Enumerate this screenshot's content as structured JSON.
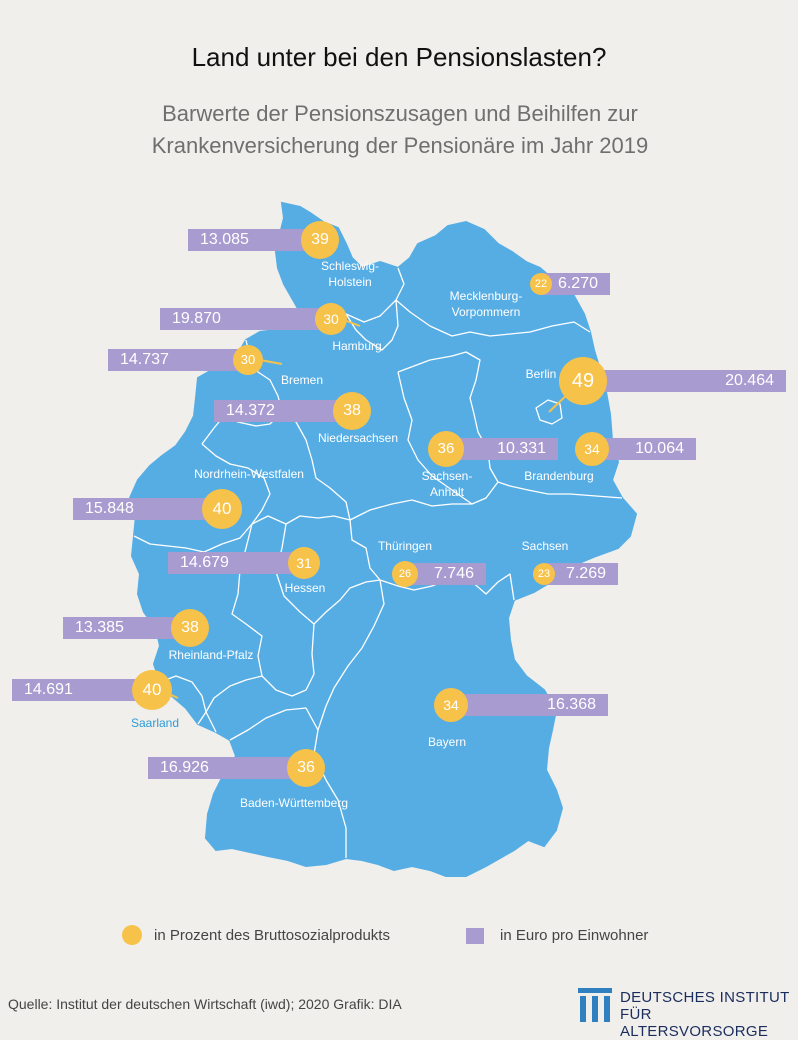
{
  "title": "Land unter bei den Pensionslasten?",
  "subtitle": "Barwerte der Pensionszusagen und Beihilfen zur Krankenversicherung der Pensionäre im Jahr 2019",
  "colors": {
    "map": "#56ade4",
    "border": "#ffffff",
    "circle": "#f7c249",
    "bar": "#a79bd0",
    "outside_label": "#2a9bd8"
  },
  "states": [
    {
      "id": "sh",
      "name": "Schleswig-Holstein",
      "percent": 39,
      "euro": "13.085"
    },
    {
      "id": "mv",
      "name": "Mecklenburg-Vorpommern",
      "percent": 22,
      "euro": "6.270"
    },
    {
      "id": "hh",
      "name": "Hamburg",
      "percent": 30,
      "euro": "19.870"
    },
    {
      "id": "hb",
      "name": "Bremen",
      "percent": 30,
      "euro": "14.737"
    },
    {
      "id": "be",
      "name": "Berlin",
      "percent": 49,
      "euro": "20.464"
    },
    {
      "id": "ni",
      "name": "Niedersachsen",
      "percent": 38,
      "euro": "14.372"
    },
    {
      "id": "st",
      "name": "Sachsen-Anhalt",
      "percent": 36,
      "euro": "10.331"
    },
    {
      "id": "bb",
      "name": "Brandenburg",
      "percent": 34,
      "euro": "10.064"
    },
    {
      "id": "nw",
      "name": "Nordrhein-Westfalen",
      "percent": 40,
      "euro": "15.848"
    },
    {
      "id": "he",
      "name": "Hessen",
      "percent": 31,
      "euro": "14.679"
    },
    {
      "id": "th",
      "name": "Thüringen",
      "percent": 26,
      "euro": "7.746"
    },
    {
      "id": "sn",
      "name": "Sachsen",
      "percent": 23,
      "euro": "7.269"
    },
    {
      "id": "rp",
      "name": "Rheinland-Pfalz",
      "percent": 38,
      "euro": "13.385"
    },
    {
      "id": "sl",
      "name": "Saarland",
      "percent": 40,
      "euro": "14.691"
    },
    {
      "id": "by",
      "name": "Bayern",
      "percent": 34,
      "euro": "16.368"
    },
    {
      "id": "bw",
      "name": "Baden-Württemberg",
      "percent": 36,
      "euro": "16.926"
    }
  ],
  "legend": {
    "percent_label": "in Prozent des Bruttosozialprodukts",
    "euro_label": "in Euro pro Einwohner"
  },
  "source": "Quelle: Institut der deutschen Wirtschaft (iwd); 2020  Grafik: DIA",
  "logo": {
    "line1": "DEUTSCHES INSTITUT",
    "line2": "FÜR ALTERSVORSORGE"
  }
}
